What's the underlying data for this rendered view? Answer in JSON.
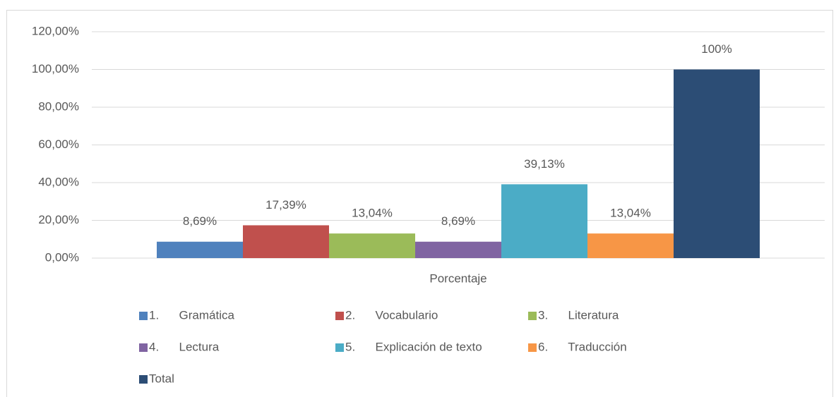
{
  "chart_data": {
    "type": "bar",
    "categories": [
      "Porcentaje"
    ],
    "series": [
      {
        "name": "1.      Gramática",
        "color": "#4f81bd",
        "values": [
          8.69
        ],
        "value_labels": [
          "8,69%"
        ]
      },
      {
        "name": "2.      Vocabulario",
        "color": "#c0504d",
        "values": [
          17.39
        ],
        "value_labels": [
          "17,39%"
        ]
      },
      {
        "name": "3.      Literatura",
        "color": "#9bbb59",
        "values": [
          13.04
        ],
        "value_labels": [
          "13,04%"
        ]
      },
      {
        "name": "4.      Lectura",
        "color": "#8064a2",
        "values": [
          8.69
        ],
        "value_labels": [
          "8,69%"
        ]
      },
      {
        "name": "5.      Explicación de texto",
        "color": "#4bacc6",
        "values": [
          39.13
        ],
        "value_labels": [
          "39,13%"
        ]
      },
      {
        "name": "6.      Traducción",
        "color": "#f79646",
        "values": [
          13.04
        ],
        "value_labels": [
          "13,04%"
        ]
      },
      {
        "name": "Total",
        "color": "#2c4d75",
        "values": [
          100
        ],
        "value_labels": [
          "100%"
        ]
      }
    ],
    "ylim": [
      0,
      120
    ],
    "yticks": [
      {
        "value": 0,
        "label": "0,00%"
      },
      {
        "value": 20,
        "label": "20,00%"
      },
      {
        "value": 40,
        "label": "40,00%"
      },
      {
        "value": 60,
        "label": "60,00%"
      },
      {
        "value": 80,
        "label": "80,00%"
      },
      {
        "value": 100,
        "label": "100,00%"
      },
      {
        "value": 120,
        "label": "120,00%"
      }
    ],
    "grid": true,
    "legend": "bottom"
  }
}
